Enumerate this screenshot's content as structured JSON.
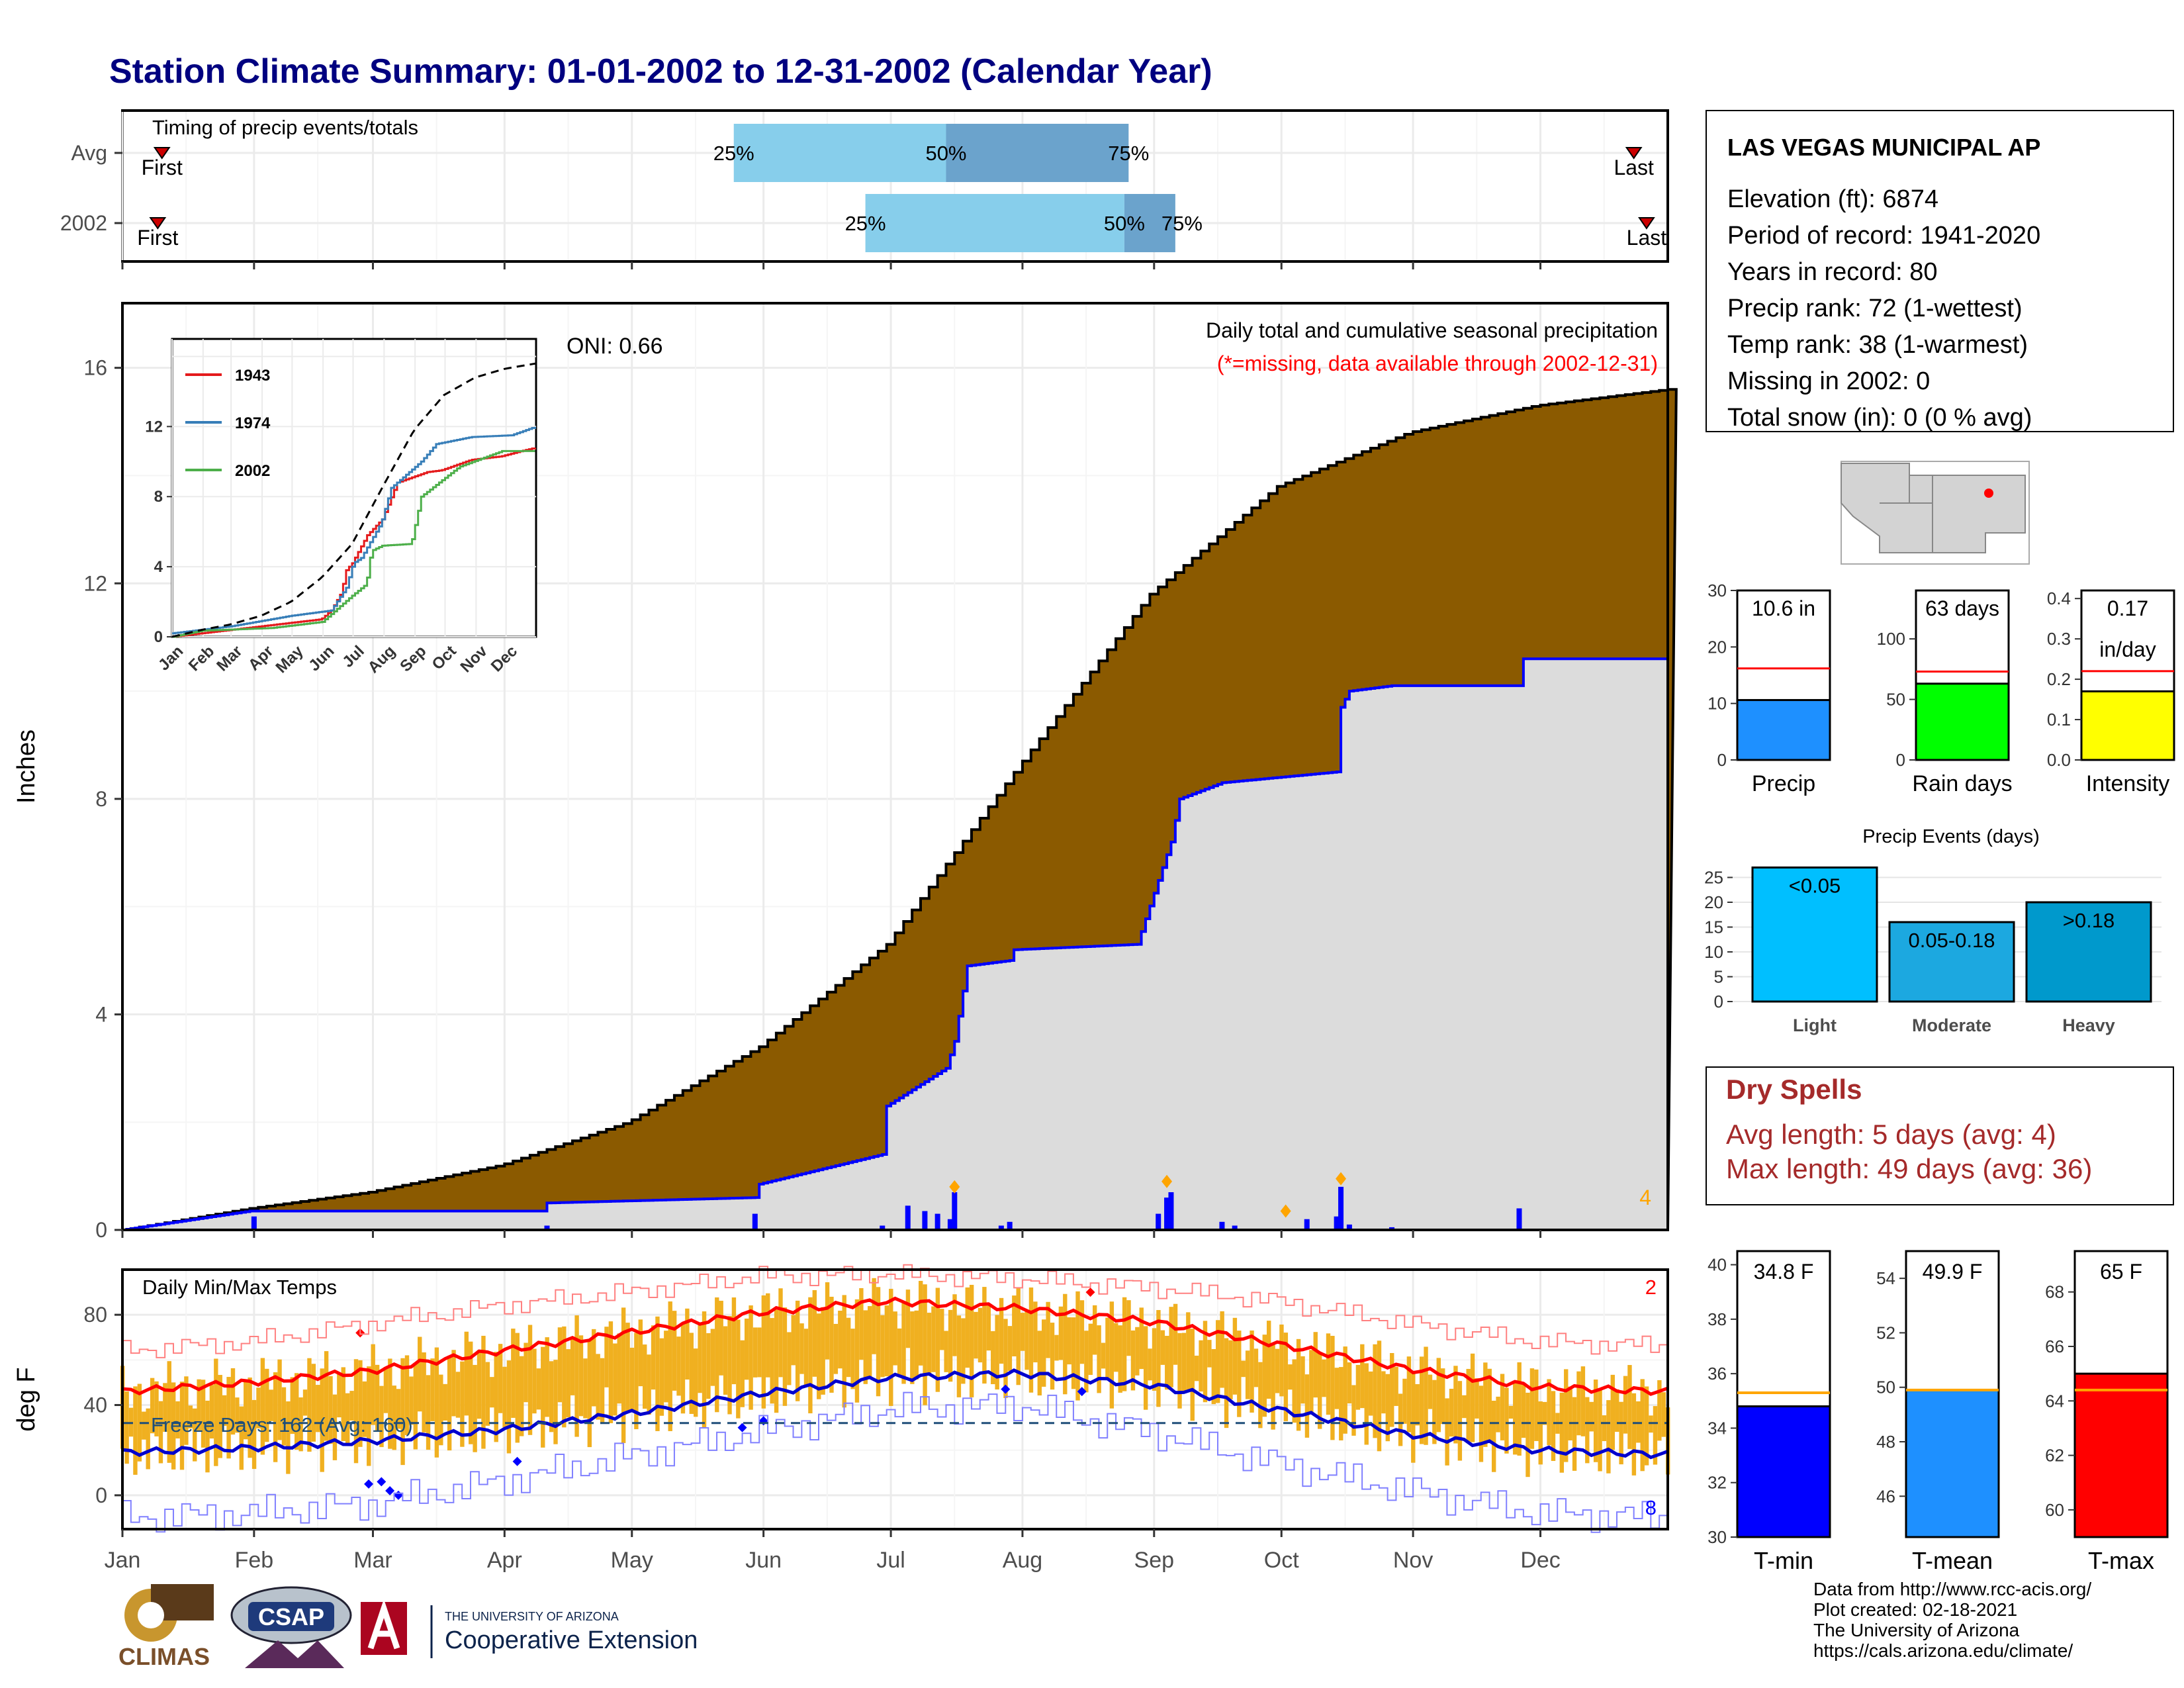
{
  "title": "Station Climate Summary: 01-01-2002 to 12-31-2002 (Calendar Year)",
  "colors": {
    "title": "#000080",
    "cumulative_fill": "#8B5A00",
    "year_fill": "#DCDCDC",
    "year_line": "#0000FF",
    "daily_bar": "#0000FF",
    "quartile_light": "#87CEEB",
    "quartile_dark": "#6BA3CC",
    "temp_range": "#F0B020",
    "tmax_avg": "#FF0000",
    "tmin_avg": "#0000CD",
    "dry_spell_text": "#A52A2A",
    "orange_marker": "#FFA500"
  },
  "timing": {
    "label": "Timing of precip events/totals",
    "rows": [
      {
        "name": "Avg",
        "first_doy": 10,
        "last_doy": 357,
        "q25_doy": 145,
        "q50_doy": 195,
        "q75_doy": 238,
        "labels": [
          "First",
          "25%",
          "50%",
          "75%",
          "Last"
        ]
      },
      {
        "name": "2002",
        "first_doy": 9,
        "last_doy": 360,
        "q25_doy": 176,
        "q50_doy": 237,
        "q75_doy": 249,
        "labels": [
          "First",
          "25%",
          "50%",
          "75%",
          "Last"
        ]
      }
    ]
  },
  "precip_main": {
    "ylabel": "Inches",
    "title_line1": "Daily total and cumulative seasonal precipitation",
    "title_line2": "(*=missing, data available through 2002-12-31)",
    "oni": "ONI: 0.66",
    "corner_count": "4",
    "y_ticks": [
      "0",
      "4",
      "8",
      "12",
      "16"
    ]
  },
  "inset": {
    "legend": [
      "1943",
      "1974",
      "2002"
    ],
    "legend_colors": [
      "#E41A1C",
      "#377EB8",
      "#4DAF4A"
    ],
    "y_ticks": [
      "0",
      "4",
      "8",
      "12"
    ],
    "months": [
      "Jan",
      "Feb",
      "Mar",
      "Apr",
      "May",
      "Jun",
      "Jul",
      "Aug",
      "Sep",
      "Oct",
      "Nov",
      "Dec"
    ]
  },
  "temps": {
    "label": "Daily Min/Max Temps",
    "ylabel": "deg F",
    "freeze_label": "Freeze Days: 162 (Avg: 160)",
    "corner_top": "2",
    "corner_bottom": "8",
    "y_ticks": [
      "0",
      "40",
      "80"
    ],
    "freeze_line": 32
  },
  "months": [
    "Jan",
    "Feb",
    "Mar",
    "Apr",
    "May",
    "Jun",
    "Jul",
    "Aug",
    "Sep",
    "Oct",
    "Nov",
    "Dec"
  ],
  "station": {
    "name": "LAS VEGAS MUNICIPAL AP",
    "lines": [
      "Elevation (ft): 6874",
      "Period of record: 1941-2020",
      "Years in record: 80",
      "Precip rank: 72 (1-wettest)",
      "Temp rank: 38 (1-warmest)",
      "Missing in 2002: 0",
      "Total snow (in): 0 (0 % avg)"
    ]
  },
  "mini_bars": [
    {
      "label": "Precip",
      "value_text": "10.6 in",
      "value": 10.6,
      "avg": 16.2,
      "ymax": 30,
      "ticks": [
        "0",
        "10",
        "20",
        "30"
      ],
      "color": "#1E90FF"
    },
    {
      "label": "Rain days",
      "value_text": "63 days",
      "value": 63,
      "avg": 73,
      "ymax": 140,
      "ticks": [
        "0",
        "50",
        "100"
      ],
      "color": "#00FF00"
    },
    {
      "label": "Intensity",
      "value_text": "0.17",
      "value_text2": "in/day",
      "value": 0.17,
      "avg": 0.22,
      "ymax": 0.42,
      "ticks": [
        "0.0",
        "0.1",
        "0.2",
        "0.3",
        "0.4"
      ],
      "color": "#FFFF00"
    }
  ],
  "precip_events": {
    "title": "Precip Events (days)",
    "ticks": [
      "0",
      "5",
      "10",
      "15",
      "20",
      "25"
    ],
    "bars": [
      {
        "category": "Light",
        "label": "<0.05",
        "value": 27,
        "color": "#00BFFF"
      },
      {
        "category": "Moderate",
        "label": "0.05-0.18",
        "value": 16,
        "color": "#1CA8E0"
      },
      {
        "category": "Heavy",
        "label": ">0.18",
        "value": 20,
        "color": "#0099CC"
      }
    ]
  },
  "dry_spells": {
    "title": "Dry Spells",
    "avg_length": "Avg length: 5 days (avg: 4)",
    "max_length": "Max length: 49 days (avg: 36)"
  },
  "temp_bars": [
    {
      "label": "T-min",
      "value_text": "34.8 F",
      "value": 34.8,
      "avg": 35.3,
      "ymin": 30,
      "ymax": 40.5,
      "ticks": [
        "30",
        "32",
        "34",
        "36",
        "38",
        "40"
      ],
      "color": "#0000FF"
    },
    {
      "label": "T-mean",
      "value_text": "49.9 F",
      "value": 49.9,
      "avg": 49.9,
      "ymin": 44.5,
      "ymax": 55,
      "ticks": [
        "46",
        "48",
        "50",
        "52",
        "54"
      ],
      "color": "#1E90FF"
    },
    {
      "label": "T-max",
      "value_text": "65 F",
      "value": 65,
      "avg": 64.4,
      "ymin": 59,
      "ymax": 69.5,
      "ticks": [
        "60",
        "62",
        "64",
        "66",
        "68"
      ],
      "color": "#FF0000"
    }
  ],
  "credits": [
    "Data from http://www.rcc-acis.org/",
    "Plot created: 02-18-2021",
    "The University of Arizona",
    "https://cals.arizona.edu/climate/"
  ],
  "logos": {
    "climas": "CLIMAS",
    "csap": "CSAP",
    "ua_line1": "THE UNIVERSITY OF ARIZONA",
    "ua_line2": "Cooperative Extension"
  },
  "chart_data": [
    {
      "type": "area",
      "title": "Daily total and cumulative seasonal precipitation",
      "ylabel": "Inches",
      "x_unit": "day of year",
      "ylim": [
        0,
        17.2
      ],
      "series": [
        {
          "name": "average cumulative",
          "x": [
            1,
            31,
            59,
            90,
            120,
            151,
            181,
            212,
            243,
            273,
            304,
            334,
            365
          ],
          "values": [
            0,
            0.4,
            0.7,
            1.2,
            2.0,
            3.4,
            5.3,
            8.6,
            11.8,
            13.8,
            14.8,
            15.3,
            15.6
          ]
        },
        {
          "name": "2002 cumulative",
          "x": [
            1,
            31,
            100,
            101,
            150,
            151,
            180,
            181,
            195,
            197,
            200,
            210,
            211,
            240,
            248,
            250,
            260,
            287,
            288,
            290,
            300,
            330,
            331,
            365
          ],
          "values": [
            0,
            0.35,
            0.35,
            0.5,
            0.6,
            0.85,
            1.4,
            2.3,
            3.0,
            3.5,
            4.9,
            5.0,
            5.2,
            5.3,
            7.2,
            8.0,
            8.3,
            8.5,
            9.7,
            10.0,
            10.1,
            10.1,
            10.6,
            10.6
          ]
        },
        {
          "name": "daily precip",
          "x": [
            32,
            101,
            150,
            180,
            186,
            190,
            193,
            196,
            197,
            208,
            210,
            245,
            247,
            248,
            260,
            263,
            280,
            287,
            288,
            290,
            300,
            330
          ],
          "values": [
            0.25,
            0.08,
            0.3,
            0.08,
            0.45,
            0.35,
            0.3,
            0.2,
            0.7,
            0.08,
            0.15,
            0.3,
            0.6,
            0.7,
            0.15,
            0.08,
            0.2,
            0.25,
            0.8,
            0.1,
            0.05,
            0.4
          ]
        }
      ]
    },
    {
      "type": "line",
      "title": "inset cumulative precipitation",
      "ylim": [
        0,
        17
      ],
      "series": [
        {
          "name": "1943",
          "x": [
            1,
            90,
            120,
            150,
            160,
            170,
            175,
            181,
            196,
            211,
            226,
            256,
            270,
            300,
            330,
            350,
            365
          ],
          "values": [
            0,
            0.6,
            0.8,
            1.0,
            1.5,
            2.5,
            3.8,
            4.2,
            5.8,
            6.7,
            8.8,
            9.4,
            9.5,
            10.1,
            10.3,
            10.6,
            10.8
          ]
        },
        {
          "name": "1974",
          "x": [
            1,
            60,
            120,
            160,
            175,
            182,
            190,
            200,
            210,
            220,
            230,
            250,
            265,
            300,
            340,
            365
          ],
          "values": [
            0.2,
            0.6,
            1.2,
            1.5,
            2.8,
            4.2,
            4.5,
            5.5,
            6.5,
            8.5,
            9.0,
            10.0,
            11.0,
            11.4,
            11.5,
            12.0
          ]
        },
        {
          "name": "2002",
          "x": [
            1,
            31,
            100,
            151,
            180,
            195,
            200,
            211,
            240,
            250,
            288,
            331,
            365
          ],
          "values": [
            0,
            0.35,
            0.5,
            0.85,
            2.3,
            3.0,
            4.9,
            5.2,
            5.3,
            8.0,
            9.7,
            10.6,
            10.6
          ]
        },
        {
          "name": "average",
          "x": [
            1,
            31,
            59,
            90,
            120,
            151,
            181,
            212,
            243,
            273,
            304,
            334,
            365
          ],
          "values": [
            0,
            0.4,
            0.7,
            1.2,
            2.0,
            3.4,
            5.3,
            8.6,
            11.8,
            13.8,
            14.8,
            15.3,
            15.6
          ]
        }
      ]
    },
    {
      "type": "line",
      "title": "Daily Min/Max Temps",
      "ylabel": "deg F",
      "ylim": [
        -15,
        100
      ],
      "series": [
        {
          "name": "avg max",
          "x": [
            1,
            31,
            59,
            90,
            120,
            151,
            181,
            212,
            243,
            273,
            304,
            334,
            365
          ],
          "values": [
            46,
            50,
            55,
            64,
            72,
            81,
            86,
            83,
            77,
            67,
            56,
            48,
            46
          ]
        },
        {
          "name": "avg min",
          "x": [
            1,
            31,
            59,
            90,
            120,
            151,
            181,
            212,
            243,
            273,
            304,
            334,
            365
          ],
          "values": [
            19,
            21,
            24,
            29,
            36,
            45,
            52,
            54,
            49,
            38,
            27,
            20,
            18
          ]
        },
        {
          "name": "record max",
          "x": [
            1,
            31,
            59,
            90,
            120,
            151,
            181,
            212,
            243,
            273,
            304,
            334,
            365
          ],
          "values": [
            64,
            68,
            76,
            84,
            90,
            97,
            98,
            96,
            92,
            86,
            76,
            68,
            66
          ]
        },
        {
          "name": "record min",
          "x": [
            1,
            31,
            59,
            90,
            120,
            151,
            181,
            212,
            243,
            273,
            304,
            334,
            365
          ],
          "values": [
            -10,
            -8,
            -4,
            6,
            17,
            28,
            38,
            40,
            28,
            14,
            2,
            -8,
            -10
          ]
        }
      ]
    },
    {
      "type": "bar",
      "title": "Precip Events (days)",
      "categories": [
        "Light",
        "Moderate",
        "Heavy"
      ],
      "values": [
        27,
        16,
        20
      ]
    }
  ]
}
